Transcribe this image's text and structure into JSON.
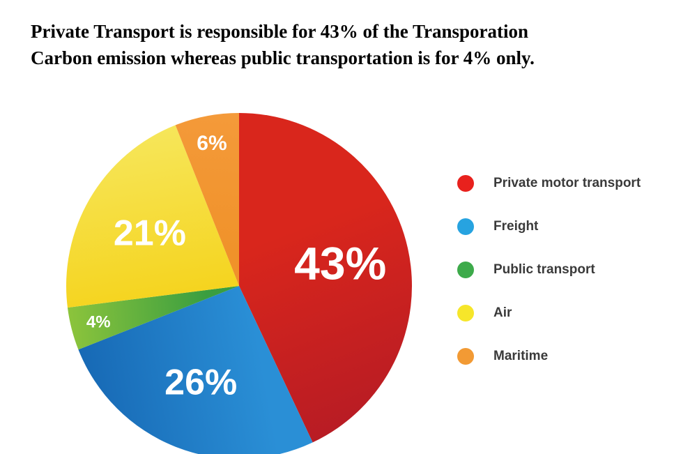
{
  "header": {
    "line1": "Private Transport is responsible for 43% of the Transporation",
    "line2": "Carbon emission whereas public transportation is for 4% only."
  },
  "chart_data": {
    "type": "pie",
    "title": "",
    "legend_position": "right",
    "slices": [
      {
        "name": "Private motor transport",
        "value": 43,
        "label": "43%",
        "color": "#d9261c",
        "shade": "#b81c24"
      },
      {
        "name": "Freight",
        "value": 26,
        "label": "26%",
        "color": "#2a8fd6",
        "shade": "#1769b5"
      },
      {
        "name": "Public transport",
        "value": 4,
        "label": "4%",
        "color": "#3a9e40",
        "shade": "#8cc43c"
      },
      {
        "name": "Air",
        "value": 21,
        "label": "21%",
        "color": "#f5d41f",
        "shade": "#f6e65a"
      },
      {
        "name": "Maritime",
        "value": 6,
        "label": "6%",
        "color": "#f0922a",
        "shade": "#f49a3a"
      }
    ]
  },
  "legend": {
    "items": [
      {
        "label": "Private motor transport",
        "color": "#e8211d"
      },
      {
        "label": "Freight",
        "color": "#27a3e0"
      },
      {
        "label": "Public transport",
        "color": "#3daa4a"
      },
      {
        "label": "Air",
        "color": "#f6e62a"
      },
      {
        "label": "Maritime",
        "color": "#f29a34"
      }
    ]
  }
}
